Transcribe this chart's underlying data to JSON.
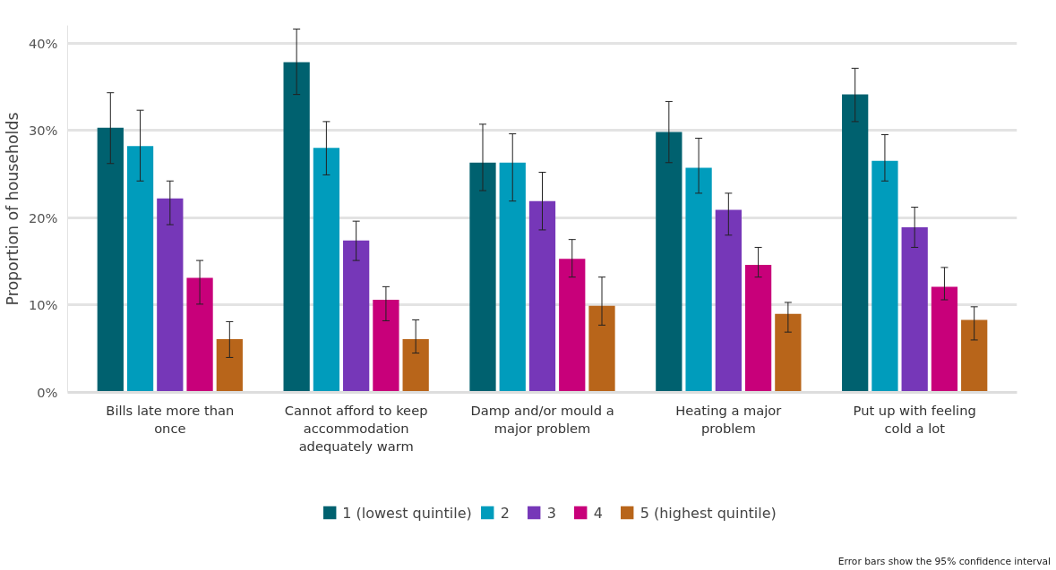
{
  "chart_data": {
    "type": "bar",
    "ylabel": "Proportion of households",
    "categories": [
      "Bills late more than once",
      "Cannot afford to keep accommodation adequately warm",
      "Damp and/or mould a major problem",
      "Heating a major problem",
      "Put up with feeling cold a lot"
    ],
    "series": [
      {
        "name": "1 (lowest quintile)",
        "color": "#00616f",
        "values": [
          30.3,
          37.8,
          26.3,
          29.8,
          34.1
        ],
        "errors": [
          [
            26.2,
            34.3
          ],
          [
            34.1,
            41.6
          ],
          [
            23.1,
            30.7
          ],
          [
            26.3,
            33.3
          ],
          [
            31.0,
            37.1
          ]
        ]
      },
      {
        "name": "2",
        "color": "#009cbc",
        "values": [
          28.2,
          28.0,
          26.3,
          25.7,
          26.5
        ],
        "errors": [
          [
            24.2,
            32.3
          ],
          [
            24.9,
            31.0
          ],
          [
            21.9,
            29.6
          ],
          [
            22.8,
            29.1
          ],
          [
            24.2,
            29.5
          ]
        ]
      },
      {
        "name": "3",
        "color": "#7637b8",
        "values": [
          22.2,
          17.4,
          21.9,
          20.9,
          18.9
        ],
        "errors": [
          [
            19.2,
            24.2
          ],
          [
            15.1,
            19.6
          ],
          [
            18.6,
            25.2
          ],
          [
            18.0,
            22.8
          ],
          [
            16.6,
            21.2
          ]
        ]
      },
      {
        "name": "4",
        "color": "#c8007a",
        "values": [
          13.1,
          10.6,
          15.3,
          14.6,
          12.1
        ],
        "errors": [
          [
            10.1,
            15.1
          ],
          [
            8.2,
            12.1
          ],
          [
            13.2,
            17.5
          ],
          [
            13.2,
            16.6
          ],
          [
            10.6,
            14.3
          ]
        ]
      },
      {
        "name": "5 (highest quintile)",
        "color": "#b8651a",
        "values": [
          6.1,
          6.1,
          9.9,
          9.0,
          8.3
        ],
        "errors": [
          [
            4.0,
            8.1
          ],
          [
            4.5,
            8.3
          ],
          [
            7.7,
            13.2
          ],
          [
            6.9,
            10.3
          ],
          [
            6.0,
            9.8
          ]
        ]
      }
    ],
    "ylim": [
      0,
      42
    ],
    "yticks": [
      {
        "value": 0,
        "label": "0%"
      },
      {
        "value": 10,
        "label": "10%"
      },
      {
        "value": 20,
        "label": "20%"
      },
      {
        "value": 30,
        "label": "30%"
      },
      {
        "value": 40,
        "label": "40%"
      }
    ],
    "grid": "y",
    "legend": "bottom",
    "annotations": [
      "Error bars show the 95% confidence interval"
    ]
  }
}
